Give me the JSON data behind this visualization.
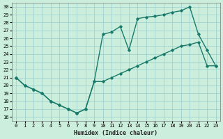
{
  "xlabel": "Humidex (Indice chaleur)",
  "background_color": "#cceedd",
  "grid_color": "#99cccc",
  "line_color": "#1a7a6a",
  "xlim": [
    -0.5,
    23.5
  ],
  "ylim": [
    15.5,
    30.5
  ],
  "xticks": [
    0,
    1,
    2,
    3,
    4,
    5,
    6,
    7,
    8,
    9,
    10,
    11,
    12,
    13,
    14,
    15,
    16,
    17,
    18,
    19,
    20,
    21,
    22,
    23
  ],
  "yticks": [
    16,
    17,
    18,
    19,
    20,
    21,
    22,
    23,
    24,
    25,
    26,
    27,
    28,
    29,
    30
  ],
  "curve_upper_x": [
    0,
    1,
    2,
    3,
    4,
    5,
    6,
    7,
    8,
    9,
    10,
    11,
    12,
    13,
    14,
    15,
    16,
    17,
    18,
    19,
    20,
    21,
    22,
    23
  ],
  "curve_upper_y": [
    21.0,
    20.0,
    19.5,
    19.0,
    18.0,
    17.5,
    17.0,
    16.5,
    17.0,
    20.5,
    26.5,
    26.8,
    27.5,
    24.5,
    28.5,
    28.7,
    28.8,
    29.0,
    29.3,
    29.5,
    30.0,
    26.5,
    24.5,
    22.5
  ],
  "curve_lower_x": [
    0,
    1,
    2,
    3,
    4,
    5,
    6,
    7,
    8,
    9,
    10,
    11,
    12,
    13,
    14,
    15,
    16,
    17,
    18,
    19,
    20,
    21,
    22,
    23
  ],
  "curve_lower_y": [
    21.0,
    20.0,
    19.5,
    19.0,
    18.0,
    17.5,
    17.0,
    16.5,
    17.0,
    20.5,
    20.5,
    21.0,
    21.5,
    22.0,
    22.5,
    23.0,
    23.5,
    24.0,
    24.5,
    25.0,
    25.2,
    25.5,
    22.5,
    22.5
  ]
}
